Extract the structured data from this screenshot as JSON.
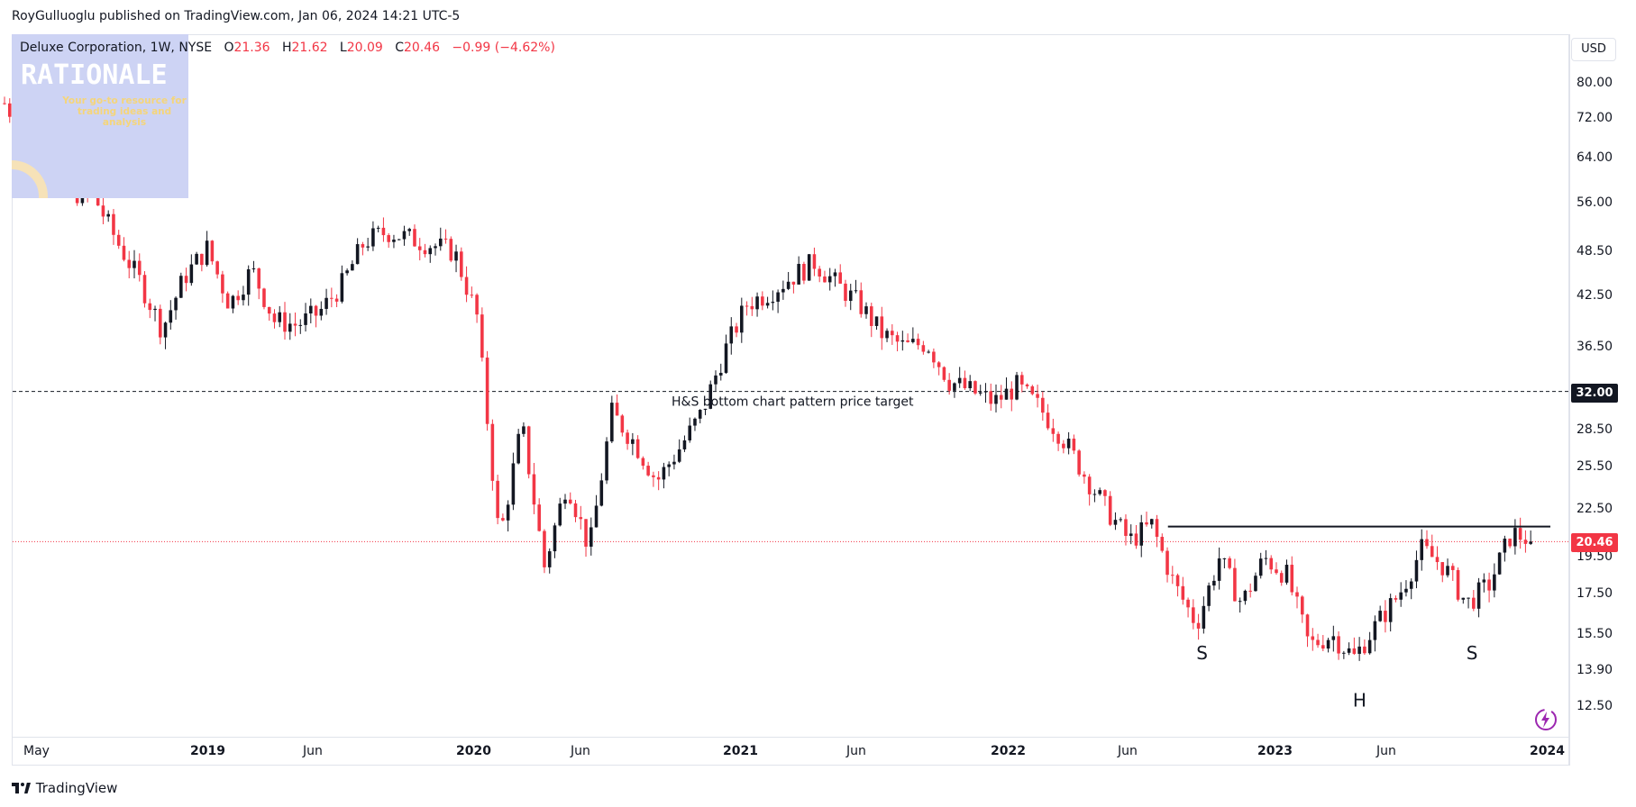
{
  "header": {
    "publisher": "RoyGulluoglu published on TradingView.com, Jan 06, 2024 14:21 UTC-5"
  },
  "legend": {
    "symbol": "Deluxe Corporation, 1W, NYSE",
    "o_label": "O",
    "o_value": "21.36",
    "h_label": "H",
    "h_value": "21.62",
    "l_label": "L",
    "l_value": "20.09",
    "c_label": "C",
    "c_value": "20.46",
    "change": "−0.99 (−4.62%)"
  },
  "watermark": {
    "title": "RATIONALE",
    "tagline": "Your go-to resource for trading ideas and analysis"
  },
  "price_scale": {
    "currency": "USD",
    "labels": [
      "80.00",
      "72.00",
      "64.00",
      "56.00",
      "48.50",
      "42.50",
      "36.50",
      "28.50",
      "25.50",
      "22.50",
      "19.50",
      "17.50",
      "15.50",
      "13.90",
      "12.50"
    ],
    "target_badge": "32.00",
    "last_badge": "20.46"
  },
  "time_scale": {
    "labels": [
      {
        "text": "May",
        "bold": false
      },
      {
        "text": "2019",
        "bold": true
      },
      {
        "text": "Jun",
        "bold": false
      },
      {
        "text": "2020",
        "bold": true
      },
      {
        "text": "Jun",
        "bold": false
      },
      {
        "text": "2021",
        "bold": true
      },
      {
        "text": "Jun",
        "bold": false
      },
      {
        "text": "2022",
        "bold": true
      },
      {
        "text": "Jun",
        "bold": false
      },
      {
        "text": "2023",
        "bold": true
      },
      {
        "text": "Jun",
        "bold": false
      },
      {
        "text": "2024",
        "bold": true
      }
    ]
  },
  "annotations": {
    "target_text": "H&S bottom chart pattern price target",
    "left_shoulder": "S",
    "head": "H",
    "right_shoulder": "S"
  },
  "footer": {
    "brand": "TradingView"
  },
  "colors": {
    "up": "#131722",
    "down": "#f23645",
    "last_price_line": "#f23645",
    "target_line": "#131722",
    "neckline": "#131722",
    "watermark_bg": "#cdd3f4",
    "bolt": "#9c27b0"
  },
  "chart_data": {
    "type": "candlestick",
    "symbol": "Deluxe Corporation",
    "interval": "1W",
    "exchange": "NYSE",
    "scale": "log",
    "y_ticks": [
      80.0,
      72.0,
      64.0,
      56.0,
      48.5,
      42.5,
      36.5,
      28.5,
      25.5,
      22.5,
      19.5,
      17.5,
      15.5,
      13.9,
      12.5
    ],
    "ylim": [
      11.2,
      95
    ],
    "x_range": [
      "2018-05",
      "2024-01"
    ],
    "last_close": 20.46,
    "target_price": 32.0,
    "neckline_price": 21.4,
    "neckline_x_range": [
      "2022-08",
      "2024-01"
    ],
    "pattern_labels": [
      {
        "text": "S",
        "date": "2022-10",
        "price": 15.2
      },
      {
        "text": "H",
        "date": "2023-05",
        "price": 13.2
      },
      {
        "text": "S",
        "date": "2023-10",
        "price": 15.2
      }
    ],
    "path": [
      [
        "2018-05",
        75.5
      ],
      [
        "2018-06",
        68.5
      ],
      [
        "2018-07",
        66
      ],
      [
        "2018-08",
        58
      ],
      [
        "2018-09",
        57
      ],
      [
        "2018-10",
        50
      ],
      [
        "2018-11",
        44.5
      ],
      [
        "2018-12",
        38.5
      ],
      [
        "2019-01",
        45
      ],
      [
        "2019-02",
        49
      ],
      [
        "2019-03",
        41.5
      ],
      [
        "2019-04",
        46
      ],
      [
        "2019-05",
        39.5
      ],
      [
        "2019-06",
        39
      ],
      [
        "2019-07",
        40.5
      ],
      [
        "2019-08",
        44
      ],
      [
        "2019-09",
        50
      ],
      [
        "2019-10",
        51.5
      ],
      [
        "2019-11",
        50.5
      ],
      [
        "2019-12",
        49.5
      ],
      [
        "2020-01",
        48.5
      ],
      [
        "2020-02",
        40
      ],
      [
        "2020-03",
        20.5
      ],
      [
        "2020-04",
        29
      ],
      [
        "2020-05",
        19
      ],
      [
        "2020-06",
        24.5
      ],
      [
        "2020-07",
        20
      ],
      [
        "2020-08",
        30
      ],
      [
        "2020-09",
        27.5
      ],
      [
        "2020-10",
        24.5
      ],
      [
        "2020-11",
        27
      ],
      [
        "2020-12",
        30
      ],
      [
        "2021-01",
        36
      ],
      [
        "2021-02",
        41.5
      ],
      [
        "2021-03",
        43
      ],
      [
        "2021-04",
        45
      ],
      [
        "2021-05",
        47
      ],
      [
        "2021-06",
        44
      ],
      [
        "2021-07",
        41.5
      ],
      [
        "2021-08",
        38
      ],
      [
        "2021-09",
        36.5
      ],
      [
        "2021-10",
        37
      ],
      [
        "2021-11",
        33
      ],
      [
        "2021-12",
        32
      ],
      [
        "2022-01",
        31
      ],
      [
        "2022-02",
        32.5
      ],
      [
        "2022-03",
        30.5
      ],
      [
        "2022-04",
        28
      ],
      [
        "2022-05",
        25
      ],
      [
        "2022-06",
        22.5
      ],
      [
        "2022-07",
        20.5
      ],
      [
        "2022-08",
        21.5
      ],
      [
        "2022-09",
        18
      ],
      [
        "2022-10",
        16
      ],
      [
        "2022-11",
        19.5
      ],
      [
        "2022-12",
        17
      ],
      [
        "2023-01",
        19.5
      ],
      [
        "2023-02",
        18.5
      ],
      [
        "2023-03",
        15
      ],
      [
        "2023-04",
        15.5
      ],
      [
        "2023-05",
        14.5
      ],
      [
        "2023-06",
        16
      ],
      [
        "2023-07",
        17.5
      ],
      [
        "2023-08",
        20
      ],
      [
        "2023-09",
        19
      ],
      [
        "2023-10",
        17
      ],
      [
        "2023-11",
        18
      ],
      [
        "2023-12",
        21
      ],
      [
        "2024-01",
        20.46
      ]
    ]
  }
}
